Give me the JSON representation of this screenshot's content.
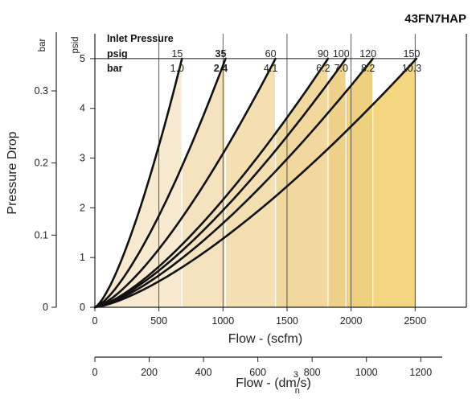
{
  "model_code": "43FN7HAP",
  "chart_data": {
    "type": "line",
    "ylabel": "Pressure Drop",
    "xlabel": "Flow - (scfm)",
    "x2label_main": "Flow - (dm",
    "x2label_sup": "3",
    "x2label_sub": "n",
    "x2label_end": "/s)",
    "y_unit_psid": "psid",
    "y_unit_bar": "bar",
    "xlim": [
      0,
      2900
    ],
    "ylim": [
      0,
      5.5
    ],
    "x_ticks": [
      "0",
      "500",
      "1000",
      "1500",
      "2000",
      "2500"
    ],
    "y_ticks_psid": [
      "0",
      "1",
      "2",
      "3",
      "4",
      "5"
    ],
    "y_ticks_bar": [
      "0",
      "0.1",
      "0.2",
      "0.3"
    ],
    "x2_ticks": [
      "0",
      "200",
      "400",
      "600",
      "800",
      "1000",
      "1200"
    ],
    "grid_x": true,
    "inlet_header": {
      "title": "Inlet Pressure",
      "psig_label": "psig",
      "bar_label": "bar"
    },
    "series": [
      {
        "psig": "15",
        "bar": "1.0",
        "x_end": 680,
        "y_end": 5,
        "bold": false,
        "color": "#f8ead0"
      },
      {
        "psig": "35",
        "bar": "2.4",
        "x_end": 1020,
        "y_end": 5,
        "bold": true,
        "color": "#f5e3c0"
      },
      {
        "psig": "60",
        "bar": "4.1",
        "x_end": 1410,
        "y_end": 5,
        "bold": false,
        "color": "#f3dfb2"
      },
      {
        "psig": "90",
        "bar": "6.2",
        "x_end": 1820,
        "y_end": 5,
        "bold": false,
        "color": "#f0d89e"
      },
      {
        "psig": "100",
        "bar": "7.0",
        "x_end": 1960,
        "y_end": 5,
        "bold": false,
        "color": "#eed28c"
      },
      {
        "psig": "120",
        "bar": "8.2",
        "x_end": 2170,
        "y_end": 5,
        "bold": false,
        "color": "#edd080"
      },
      {
        "psig": "150",
        "bar": "10.3",
        "x_end": 2510,
        "y_end": 5,
        "bold": false,
        "color": "#f4d580"
      }
    ],
    "curve_exponent": 1.4
  }
}
